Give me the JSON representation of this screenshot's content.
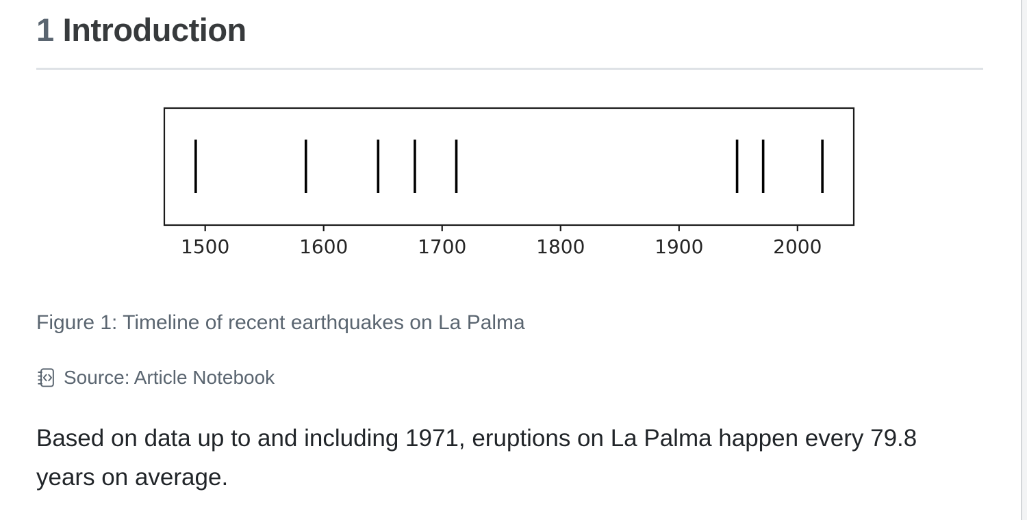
{
  "heading": {
    "number": "1",
    "title": "Introduction"
  },
  "figure": {
    "caption": "Figure 1: Timeline of recent earthquakes on La Palma",
    "source_label": "Source: Article Notebook",
    "source_icon": "journal-code-icon"
  },
  "paragraph": "Based on data up to and including 1971, eruptions on La Palma happen every 79.8 years on average.",
  "chart_data": {
    "type": "scatter",
    "subtype": "eventplot-timeline",
    "title": "",
    "xlabel": "",
    "ylabel": "",
    "events_years": [
      1492,
      1585,
      1646,
      1677,
      1712,
      1949,
      1971,
      2021
    ],
    "x_ticks": [
      1500,
      1600,
      1700,
      1800,
      1900,
      2000
    ],
    "xlim": [
      1465.5,
      2047.5
    ],
    "grid": false,
    "legend": "none",
    "marker": "vertical-line",
    "mark_color": "#000000",
    "spine_color": "#1a1a1a",
    "tick_label_color": "#262626"
  },
  "colors": {
    "heading_text": "#373a3c",
    "section_number": "#5a6570",
    "caption_text": "#5a6570",
    "body_text": "#212529",
    "rule": "#dee2e6",
    "page_bg": "#ffffff"
  }
}
